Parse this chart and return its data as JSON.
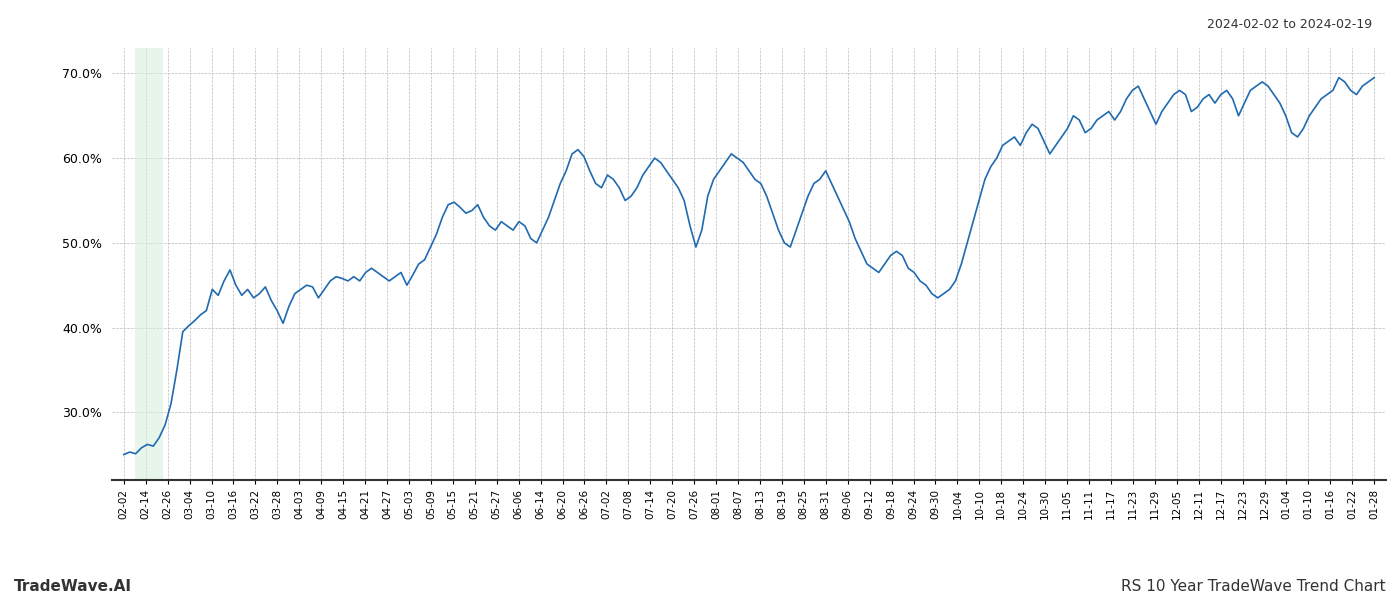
{
  "title_top_right": "2024-02-02 to 2024-02-19",
  "title_bottom_left": "TradeWave.AI",
  "title_bottom_right": "RS 10 Year TradeWave Trend Chart",
  "background_color": "#ffffff",
  "line_color": "#1f6ab0",
  "line_width": 1.2,
  "shade_color": "#d4edda",
  "shade_alpha": 0.55,
  "ylim": [
    22,
    73
  ],
  "yticks": [
    30,
    40,
    50,
    60,
    70
  ],
  "x_tick_labels": [
    "02-02",
    "02-14",
    "02-26",
    "03-04",
    "03-10",
    "03-16",
    "03-22",
    "03-28",
    "04-03",
    "04-09",
    "04-15",
    "04-21",
    "04-27",
    "05-03",
    "05-09",
    "05-15",
    "05-21",
    "05-27",
    "06-06",
    "06-14",
    "06-20",
    "06-26",
    "07-02",
    "07-08",
    "07-14",
    "07-20",
    "07-26",
    "08-01",
    "08-07",
    "08-13",
    "08-19",
    "08-25",
    "08-31",
    "09-06",
    "09-12",
    "09-18",
    "09-24",
    "09-30",
    "10-04",
    "10-10",
    "10-18",
    "10-24",
    "10-30",
    "11-05",
    "11-11",
    "11-17",
    "11-23",
    "11-29",
    "12-05",
    "12-11",
    "12-17",
    "12-23",
    "12-29",
    "01-04",
    "01-10",
    "01-16",
    "01-22",
    "01-28"
  ],
  "shade_x_start_label": "02-08",
  "shade_x_end_label": "02-20",
  "values": [
    25.0,
    25.3,
    25.1,
    25.8,
    26.2,
    26.0,
    27.0,
    28.5,
    31.0,
    35.0,
    39.5,
    40.2,
    40.8,
    41.5,
    42.0,
    44.5,
    43.8,
    45.5,
    46.8,
    45.0,
    43.8,
    44.5,
    43.5,
    44.0,
    44.8,
    43.2,
    42.0,
    40.5,
    42.5,
    44.0,
    44.5,
    45.0,
    44.8,
    43.5,
    44.5,
    45.5,
    46.0,
    45.8,
    45.5,
    46.0,
    45.5,
    46.5,
    47.0,
    46.5,
    46.0,
    45.5,
    46.0,
    46.5,
    45.0,
    46.2,
    47.5,
    48.0,
    49.5,
    51.0,
    53.0,
    54.5,
    54.8,
    54.2,
    53.5,
    53.8,
    54.5,
    53.0,
    52.0,
    51.5,
    52.5,
    52.0,
    51.5,
    52.5,
    52.0,
    50.5,
    50.0,
    51.5,
    53.0,
    55.0,
    57.0,
    58.5,
    60.5,
    61.0,
    60.2,
    58.5,
    57.0,
    56.5,
    58.0,
    57.5,
    56.5,
    55.0,
    55.5,
    56.5,
    58.0,
    59.0,
    60.0,
    59.5,
    58.5,
    57.5,
    56.5,
    55.0,
    52.0,
    49.5,
    51.5,
    55.5,
    57.5,
    58.5,
    59.5,
    60.5,
    60.0,
    59.5,
    58.5,
    57.5,
    57.0,
    55.5,
    53.5,
    51.5,
    50.0,
    49.5,
    51.5,
    53.5,
    55.5,
    57.0,
    57.5,
    58.5,
    57.0,
    55.5,
    54.0,
    52.5,
    50.5,
    49.0,
    47.5,
    47.0,
    46.5,
    47.5,
    48.5,
    49.0,
    48.5,
    47.0,
    46.5,
    45.5,
    45.0,
    44.0,
    43.5,
    44.0,
    44.5,
    45.5,
    47.5,
    50.0,
    52.5,
    55.0,
    57.5,
    59.0,
    60.0,
    61.5,
    62.0,
    62.5,
    61.5,
    63.0,
    64.0,
    63.5,
    62.0,
    60.5,
    61.5,
    62.5,
    63.5,
    65.0,
    64.5,
    63.0,
    63.5,
    64.5,
    65.0,
    65.5,
    64.5,
    65.5,
    67.0,
    68.0,
    68.5,
    67.0,
    65.5,
    64.0,
    65.5,
    66.5,
    67.5,
    68.0,
    67.5,
    65.5,
    66.0,
    67.0,
    67.5,
    66.5,
    67.5,
    68.0,
    67.0,
    65.0,
    66.5,
    68.0,
    68.5,
    69.0,
    68.5,
    67.5,
    66.5,
    65.0,
    63.0,
    62.5,
    63.5,
    65.0,
    66.0,
    67.0,
    67.5,
    68.0,
    69.5,
    69.0,
    68.0,
    67.5,
    68.5,
    69.0,
    69.5
  ]
}
